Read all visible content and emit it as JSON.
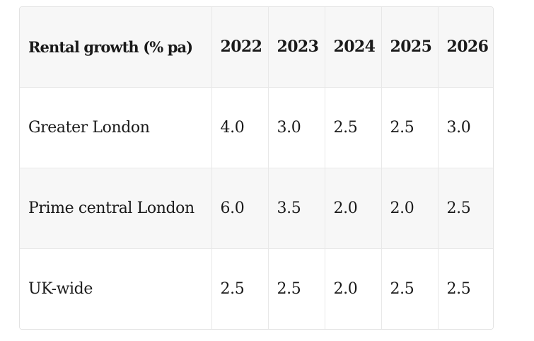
{
  "table": {
    "headers": [
      "Rental growth (% pa)",
      "2022",
      "2023",
      "2024",
      "2025",
      "2026"
    ],
    "rows": [
      {
        "label": "Greater London",
        "values": [
          "4.0",
          "3.0",
          "2.5",
          "2.5",
          "3.0"
        ]
      },
      {
        "label": "Prime central London",
        "values": [
          "6.0",
          "3.5",
          "2.0",
          "2.0",
          "2.5"
        ]
      },
      {
        "label": "UK-wide",
        "values": [
          "2.5",
          "2.5",
          "2.0",
          "2.5",
          "2.5"
        ]
      }
    ]
  }
}
